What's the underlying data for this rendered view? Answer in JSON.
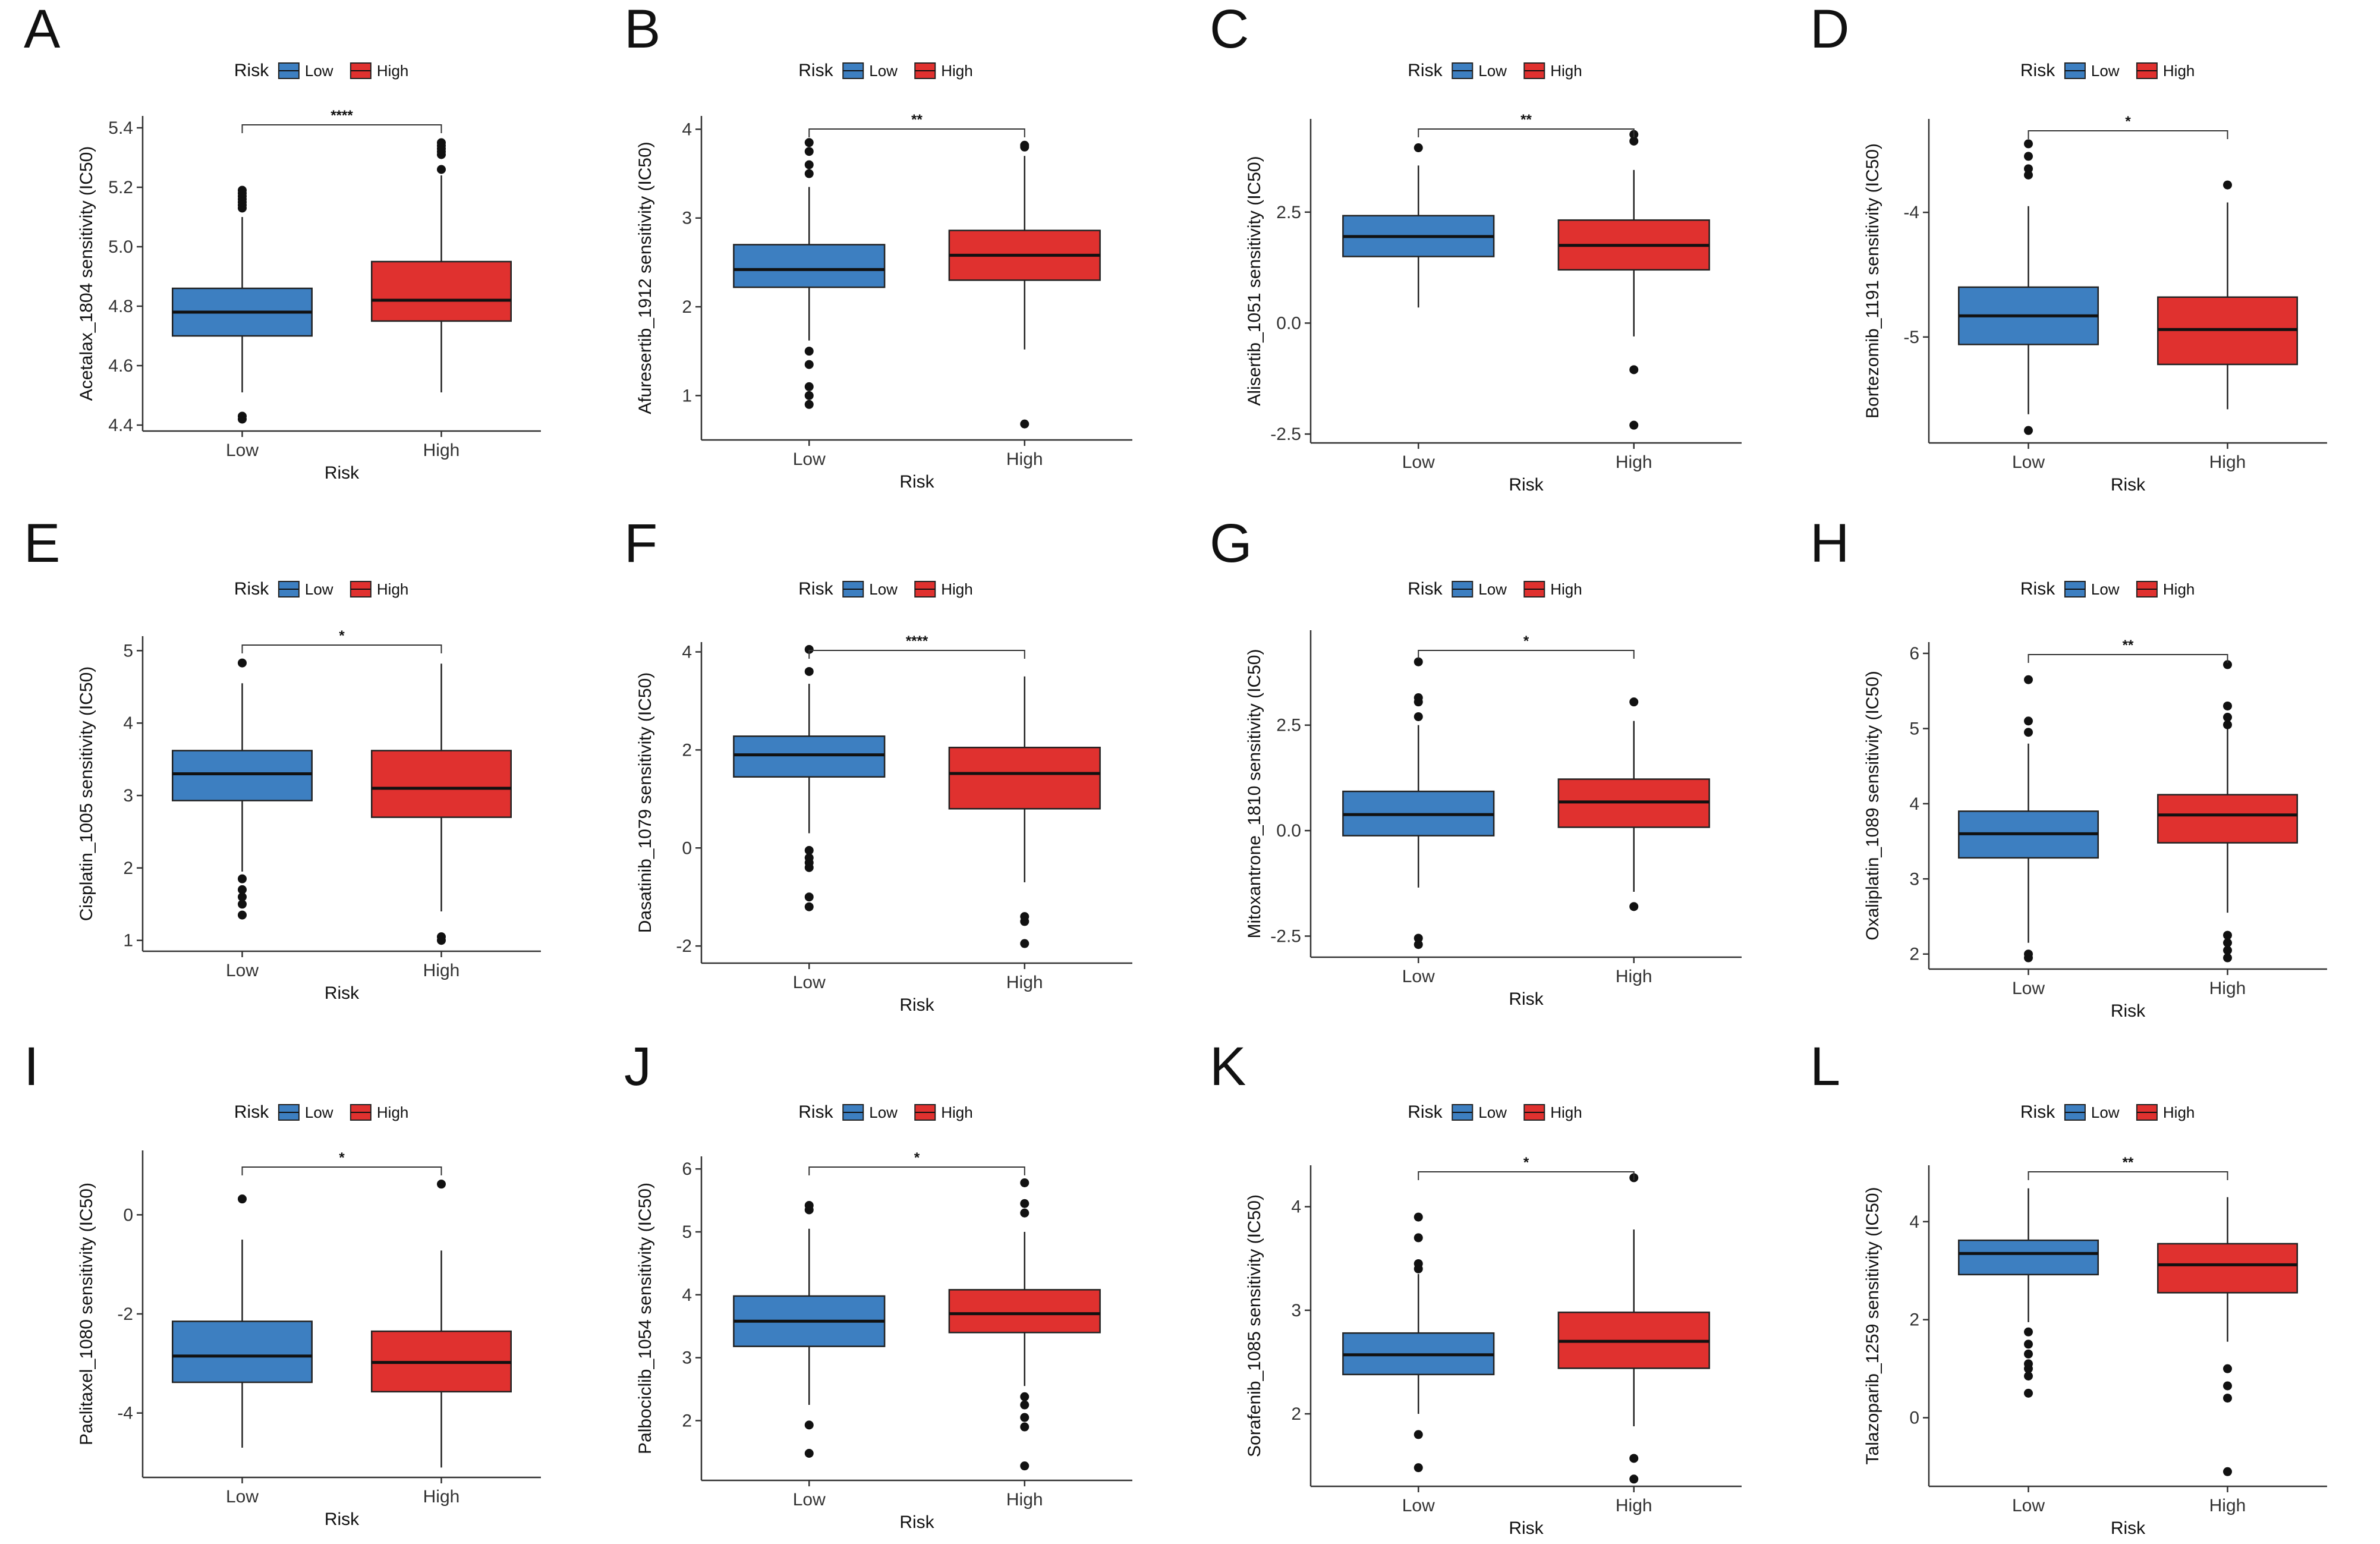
{
  "chart_data": [
    {
      "panel": "A",
      "type": "box",
      "legend_title": "Risk",
      "categories": [
        "Low",
        "High"
      ],
      "xlabel": "Risk",
      "ylabel": "Acetalax_1804 sensitivity (IC50)",
      "ylim": [
        4.38,
        5.44
      ],
      "yticks": [
        4.4,
        4.6,
        4.8,
        5.0,
        5.2,
        5.4
      ],
      "yticklabels": [
        "4.4",
        "4.6",
        "4.8",
        "5.0",
        "5.2",
        "5.4"
      ],
      "significance": "****",
      "series": [
        {
          "name": "Low",
          "color": "#3d7fc1",
          "min": 4.51,
          "q1": 4.7,
          "median": 4.78,
          "q3": 4.86,
          "max": 5.1,
          "outliers": [
            4.43,
            4.42,
            5.13,
            5.14,
            5.15,
            5.16,
            5.17,
            5.18,
            5.19
          ]
        },
        {
          "name": "High",
          "color": "#e0312f",
          "min": 4.51,
          "q1": 4.75,
          "median": 4.82,
          "q3": 4.95,
          "max": 5.24,
          "outliers": [
            5.26,
            5.31,
            5.32,
            5.33,
            5.34,
            5.35
          ]
        }
      ]
    },
    {
      "panel": "B",
      "type": "box",
      "legend_title": "Risk",
      "categories": [
        "Low",
        "High"
      ],
      "xlabel": "Risk",
      "ylabel": "Afuresertib_1912 sensitivity (IC50)",
      "ylim": [
        0.5,
        4.15
      ],
      "yticks": [
        1,
        2,
        3,
        4
      ],
      "yticklabels": [
        "1",
        "2",
        "3",
        "4"
      ],
      "significance": "**",
      "series": [
        {
          "name": "Low",
          "color": "#3d7fc1",
          "min": 1.62,
          "q1": 2.22,
          "median": 2.42,
          "q3": 2.7,
          "max": 3.35,
          "outliers": [
            0.9,
            1.0,
            1.1,
            1.35,
            1.5,
            3.5,
            3.6,
            3.75,
            3.85
          ]
        },
        {
          "name": "High",
          "color": "#e0312f",
          "min": 1.52,
          "q1": 2.3,
          "median": 2.58,
          "q3": 2.86,
          "max": 3.7,
          "outliers": [
            0.68,
            3.8,
            3.82
          ]
        }
      ]
    },
    {
      "panel": "C",
      "type": "box",
      "legend_title": "Risk",
      "categories": [
        "Low",
        "High"
      ],
      "xlabel": "Risk",
      "ylabel": "Alisertib_1051 sensitivity (IC50)",
      "ylim": [
        -2.7,
        4.6
      ],
      "yticks": [
        -2.5,
        0.0,
        2.5
      ],
      "yticklabels": [
        "-2.5",
        "0.0",
        "2.5"
      ],
      "significance": "**",
      "series": [
        {
          "name": "Low",
          "color": "#3d7fc1",
          "min": 0.35,
          "q1": 1.5,
          "median": 1.95,
          "q3": 2.42,
          "max": 3.55,
          "outliers": [
            3.95
          ]
        },
        {
          "name": "High",
          "color": "#e0312f",
          "min": -0.3,
          "q1": 1.2,
          "median": 1.75,
          "q3": 2.32,
          "max": 3.45,
          "outliers": [
            -2.3,
            -1.05,
            4.1,
            4.25
          ]
        }
      ]
    },
    {
      "panel": "D",
      "type": "box",
      "legend_title": "Risk",
      "categories": [
        "Low",
        "High"
      ],
      "xlabel": "Risk",
      "ylabel": "Bortezomib_1191 sensitivity (IC50)",
      "ylim": [
        -5.85,
        -3.25
      ],
      "yticks": [
        -5,
        -4
      ],
      "yticklabels": [
        "-5",
        "-4"
      ],
      "significance": "*",
      "series": [
        {
          "name": "Low",
          "color": "#3d7fc1",
          "min": -5.62,
          "q1": -5.06,
          "median": -4.83,
          "q3": -4.6,
          "max": -3.95,
          "outliers": [
            -5.75,
            -3.7,
            -3.65,
            -3.55,
            -3.45
          ]
        },
        {
          "name": "High",
          "color": "#e0312f",
          "min": -5.58,
          "q1": -5.22,
          "median": -4.94,
          "q3": -4.68,
          "max": -3.92,
          "outliers": [
            -3.78
          ]
        }
      ]
    },
    {
      "panel": "E",
      "type": "box",
      "legend_title": "Risk",
      "categories": [
        "Low",
        "High"
      ],
      "xlabel": "Risk",
      "ylabel": "Cisplatin_1005 sensitivity (IC50)",
      "ylim": [
        0.85,
        5.2
      ],
      "yticks": [
        1,
        2,
        3,
        4,
        5
      ],
      "yticklabels": [
        "1",
        "2",
        "3",
        "4",
        "5"
      ],
      "significance": "*",
      "series": [
        {
          "name": "Low",
          "color": "#3d7fc1",
          "min": 1.95,
          "q1": 2.93,
          "median": 3.3,
          "q3": 3.62,
          "max": 4.55,
          "outliers": [
            1.35,
            1.5,
            1.6,
            1.7,
            1.85,
            4.83
          ]
        },
        {
          "name": "High",
          "color": "#e0312f",
          "min": 1.4,
          "q1": 2.7,
          "median": 3.1,
          "q3": 3.62,
          "max": 4.82,
          "outliers": [
            1.0,
            1.05
          ]
        }
      ]
    },
    {
      "panel": "F",
      "type": "box",
      "legend_title": "Risk",
      "categories": [
        "Low",
        "High"
      ],
      "xlabel": "Risk",
      "ylabel": "Dasatinib_1079 sensitivity (IC50)",
      "ylim": [
        -2.35,
        4.2
      ],
      "yticks": [
        -2,
        0,
        2,
        4
      ],
      "yticklabels": [
        "-2",
        "0",
        "2",
        "4"
      ],
      "significance": "****",
      "series": [
        {
          "name": "Low",
          "color": "#3d7fc1",
          "min": 0.3,
          "q1": 1.45,
          "median": 1.9,
          "q3": 2.28,
          "max": 3.35,
          "outliers": [
            -1.2,
            -1.0,
            -0.4,
            -0.3,
            -0.2,
            -0.05,
            3.6,
            4.05
          ]
        },
        {
          "name": "High",
          "color": "#e0312f",
          "min": -0.7,
          "q1": 0.8,
          "median": 1.52,
          "q3": 2.05,
          "max": 3.5,
          "outliers": [
            -1.95,
            -1.5,
            -1.4
          ]
        }
      ]
    },
    {
      "panel": "G",
      "type": "box",
      "legend_title": "Risk",
      "categories": [
        "Low",
        "High"
      ],
      "xlabel": "Risk",
      "ylabel": "Mitoxantrone_1810 sensitivity (IC50)",
      "ylim": [
        -3.0,
        4.75
      ],
      "yticks": [
        -2.5,
        0.0,
        2.5
      ],
      "yticklabels": [
        "-2.5",
        "0.0",
        "2.5"
      ],
      "significance": "*",
      "series": [
        {
          "name": "Low",
          "color": "#3d7fc1",
          "min": -1.35,
          "q1": -0.12,
          "median": 0.38,
          "q3": 0.93,
          "max": 2.5,
          "outliers": [
            -2.7,
            -2.55,
            2.7,
            3.05,
            3.15,
            4.0
          ]
        },
        {
          "name": "High",
          "color": "#e0312f",
          "min": -1.45,
          "q1": 0.08,
          "median": 0.68,
          "q3": 1.22,
          "max": 2.6,
          "outliers": [
            -1.8,
            3.05
          ]
        }
      ]
    },
    {
      "panel": "H",
      "type": "box",
      "legend_title": "Risk",
      "categories": [
        "Low",
        "High"
      ],
      "xlabel": "Risk",
      "ylabel": "Oxaliplatin_1089 sensitivity (IC50)",
      "ylim": [
        1.8,
        6.15
      ],
      "yticks": [
        2,
        3,
        4,
        5,
        6
      ],
      "yticklabels": [
        "2",
        "3",
        "4",
        "5",
        "6"
      ],
      "significance": "**",
      "series": [
        {
          "name": "Low",
          "color": "#3d7fc1",
          "min": 2.15,
          "q1": 3.28,
          "median": 3.6,
          "q3": 3.9,
          "max": 4.8,
          "outliers": [
            1.95,
            2.0,
            4.95,
            5.1,
            5.65
          ]
        },
        {
          "name": "High",
          "color": "#e0312f",
          "min": 2.55,
          "q1": 3.48,
          "median": 3.85,
          "q3": 4.12,
          "max": 5.0,
          "outliers": [
            1.95,
            2.05,
            2.15,
            2.25,
            5.05,
            5.15,
            5.3,
            5.85
          ]
        }
      ]
    },
    {
      "panel": "I",
      "type": "box",
      "legend_title": "Risk",
      "categories": [
        "Low",
        "High"
      ],
      "xlabel": "Risk",
      "ylabel": "Paclitaxel_1080 sensitivity (IC50)",
      "ylim": [
        -5.3,
        1.3
      ],
      "yticks": [
        -4,
        -2,
        0
      ],
      "yticklabels": [
        "-4",
        "-2",
        "0"
      ],
      "significance": "*",
      "series": [
        {
          "name": "Low",
          "color": "#3d7fc1",
          "min": -4.7,
          "q1": -3.38,
          "median": -2.85,
          "q3": -2.15,
          "max": -0.5,
          "outliers": [
            0.32
          ]
        },
        {
          "name": "High",
          "color": "#e0312f",
          "min": -5.1,
          "q1": -3.57,
          "median": -2.98,
          "q3": -2.35,
          "max": -0.72,
          "outliers": [
            0.62
          ]
        }
      ]
    },
    {
      "panel": "J",
      "type": "box",
      "legend_title": "Risk",
      "categories": [
        "Low",
        "High"
      ],
      "xlabel": "Risk",
      "ylabel": "Palbociclib_1054 sensitivity (IC50)",
      "ylim": [
        1.05,
        6.2
      ],
      "yticks": [
        2,
        3,
        4,
        5,
        6
      ],
      "yticklabels": [
        "2",
        "3",
        "4",
        "5",
        "6"
      ],
      "significance": "*",
      "series": [
        {
          "name": "Low",
          "color": "#3d7fc1",
          "min": 2.25,
          "q1": 3.18,
          "median": 3.58,
          "q3": 3.98,
          "max": 5.05,
          "outliers": [
            1.48,
            1.93,
            5.35,
            5.42
          ]
        },
        {
          "name": "High",
          "color": "#e0312f",
          "min": 2.55,
          "q1": 3.4,
          "median": 3.7,
          "q3": 4.08,
          "max": 5.0,
          "outliers": [
            1.28,
            1.9,
            2.05,
            2.25,
            2.38,
            5.3,
            5.45,
            5.78
          ]
        }
      ]
    },
    {
      "panel": "K",
      "type": "box",
      "legend_title": "Risk",
      "categories": [
        "Low",
        "High"
      ],
      "xlabel": "Risk",
      "ylabel": "Sorafenib_1085 sensitivity (IC50)",
      "ylim": [
        1.3,
        4.4
      ],
      "yticks": [
        2,
        3,
        4
      ],
      "yticklabels": [
        "2",
        "3",
        "4"
      ],
      "significance": "*",
      "series": [
        {
          "name": "Low",
          "color": "#3d7fc1",
          "min": 2.0,
          "q1": 2.38,
          "median": 2.57,
          "q3": 2.78,
          "max": 3.35,
          "outliers": [
            1.48,
            1.8,
            3.4,
            3.45,
            3.7,
            3.9
          ]
        },
        {
          "name": "High",
          "color": "#e0312f",
          "min": 1.88,
          "q1": 2.44,
          "median": 2.7,
          "q3": 2.98,
          "max": 3.78,
          "outliers": [
            1.37,
            1.57,
            4.28
          ]
        }
      ]
    },
    {
      "panel": "L",
      "type": "box",
      "legend_title": "Risk",
      "categories": [
        "Low",
        "High"
      ],
      "xlabel": "Risk",
      "ylabel": "Talazoparib_1259 sensitivity (IC50)",
      "ylim": [
        -1.4,
        5.15
      ],
      "yticks": [
        0,
        2,
        4
      ],
      "yticklabels": [
        "0",
        "2",
        "4"
      ],
      "significance": "**",
      "series": [
        {
          "name": "Low",
          "color": "#3d7fc1",
          "min": 1.95,
          "q1": 2.92,
          "median": 3.35,
          "q3": 3.62,
          "max": 4.68,
          "outliers": [
            0.5,
            0.85,
            1.0,
            1.1,
            1.3,
            1.5,
            1.75
          ]
        },
        {
          "name": "High",
          "color": "#e0312f",
          "min": 1.55,
          "q1": 2.55,
          "median": 3.12,
          "q3": 3.55,
          "max": 4.5,
          "outliers": [
            -1.1,
            0.4,
            0.65,
            1.0
          ]
        }
      ]
    }
  ]
}
